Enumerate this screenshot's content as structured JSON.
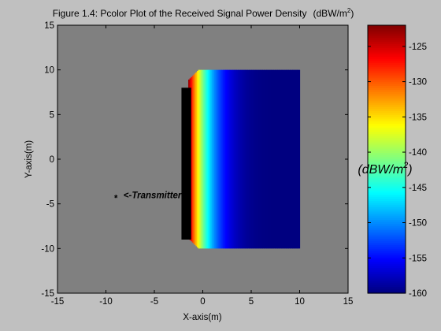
{
  "chart_data": {
    "type": "heatmap",
    "title": "Figure 1.4: Pcolor Plot of the Received Signal Power Density",
    "title_unit_prefix": "(dBW/m",
    "title_unit_sup": "2",
    "title_unit_suffix": ")",
    "xlabel": "X-axis(m)",
    "ylabel": "Y-axis(m)",
    "xlim": [
      -15,
      15
    ],
    "ylim": [
      -15,
      15
    ],
    "xticks": [
      "-15",
      "-10",
      "-5",
      "0",
      "5",
      "10",
      "15"
    ],
    "yticks": [
      "-15",
      "-10",
      "-5",
      "0",
      "5",
      "10",
      "15"
    ],
    "grid": false,
    "background_color": "#808080",
    "colormap": "jet",
    "clim": [
      -160,
      -122
    ],
    "colorbar_ticks": [
      "-125",
      "-130",
      "-135",
      "-140",
      "-145",
      "-150",
      "-155",
      "-160"
    ],
    "colorbar_label_prefix": "(dBW/m",
    "colorbar_label_sup": "2",
    "colorbar_label_suffix": ")",
    "region": {
      "x": [
        -1.5,
        10
      ],
      "y": [
        -10,
        10
      ],
      "corner_cut": 1,
      "max_power": -122,
      "min_power": -160
    },
    "wall": {
      "x": [
        -2.2,
        -1.2
      ],
      "y": [
        -9,
        8
      ]
    },
    "transmitter": {
      "x": -9,
      "y": -4,
      "marker": "*",
      "label": "<-Transmitter"
    }
  }
}
